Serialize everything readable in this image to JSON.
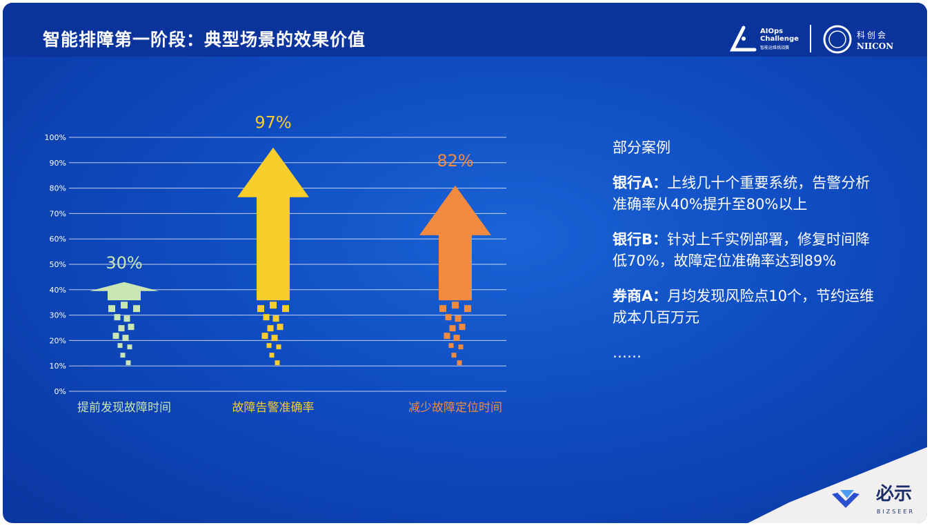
{
  "header": {
    "title": "智能排障第一阶段：典型场景的效果价值",
    "logo_aiops": {
      "line1": "AIOps",
      "line2": "Challenge",
      "sub": "智能运维挑战赛"
    },
    "logo_niicon": {
      "cn": "科创会",
      "en": "NIICON"
    }
  },
  "chart_data": {
    "type": "bar",
    "style": "arrows",
    "categories": [
      "提前发现故障时间",
      "故障告警准确率",
      "减少故障定位时间"
    ],
    "values": [
      30,
      97,
      82
    ],
    "data_labels": [
      "30%",
      "97%",
      "82%"
    ],
    "colors": [
      "#c9e6b3",
      "#f9cd2b",
      "#f28b40"
    ],
    "ylim": [
      0,
      100
    ],
    "yticks": [
      "0%",
      "10%",
      "20%",
      "30%",
      "40%",
      "50%",
      "60%",
      "70%",
      "80%",
      "90%",
      "100%"
    ],
    "grid": true
  },
  "cases": {
    "heading": "部分案例",
    "items": [
      {
        "name": "银行A：",
        "text": "上线几十个重要系统，告警分析准确率从40%提升至80%以上"
      },
      {
        "name": "银行B：",
        "text": "针对上千实例部署，修复时间降低70%，故障定位准确率达到89%"
      },
      {
        "name": "券商A：",
        "text": "月均发现风险点10个，节约运维成本几百万元"
      }
    ],
    "more": "……"
  },
  "footer": {
    "logo_cn": "必示",
    "logo_en": "BIZSEER"
  }
}
